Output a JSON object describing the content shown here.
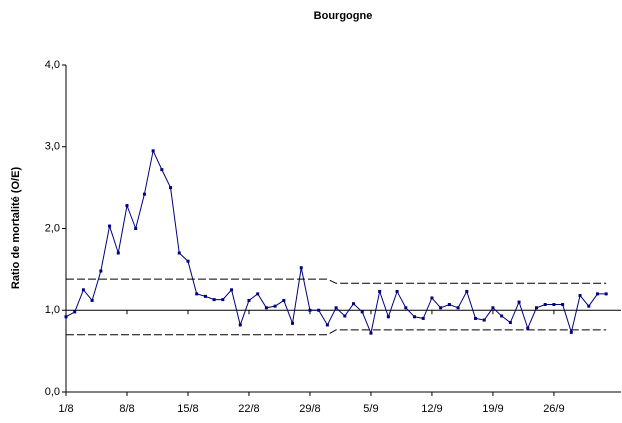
{
  "chart_data": {
    "type": "line",
    "title": "Bourgogne",
    "y_label": "Ratio de mortalité (O/E)",
    "categories": [
      "1/8",
      null,
      null,
      null,
      null,
      null,
      null,
      "8/8",
      null,
      null,
      null,
      null,
      null,
      null,
      "15/8",
      null,
      null,
      null,
      null,
      null,
      null,
      "22/8",
      null,
      null,
      null,
      null,
      null,
      null,
      "29/8",
      null,
      null,
      null,
      null,
      null,
      null,
      "5/9",
      null,
      null,
      null,
      null,
      null,
      null,
      "12/9",
      null,
      null,
      null,
      null,
      null,
      null,
      "19/9",
      null,
      null,
      null,
      null,
      null,
      null,
      "26/9",
      null,
      null,
      null,
      null,
      null,
      null
    ],
    "series": [
      {
        "color": "#000080",
        "style": "solid",
        "markers": true,
        "values": [
          0.92,
          0.98,
          1.25,
          1.12,
          1.48,
          2.03,
          1.7,
          2.28,
          2.0,
          2.42,
          2.95,
          2.72,
          2.5,
          1.7,
          1.6,
          1.2,
          1.17,
          1.13,
          1.13,
          1.25,
          0.82,
          1.12,
          1.2,
          1.03,
          1.05,
          1.12,
          0.84,
          1.52,
          1.0,
          1.0,
          0.82,
          1.03,
          0.93,
          1.08,
          0.98,
          0.72,
          1.23,
          0.92,
          1.23,
          1.03,
          0.92,
          0.9,
          1.15,
          1.03,
          1.07,
          1.03,
          1.23,
          0.9,
          0.88,
          1.03,
          0.93,
          0.85,
          1.1,
          0.78,
          1.03,
          1.07,
          1.07,
          1.07,
          0.73,
          1.18,
          1.05,
          1.2,
          1.2
        ]
      },
      {
        "color": "#000000",
        "style": "dashed",
        "markers": false,
        "values": [
          1.38,
          1.38,
          1.38,
          1.38,
          1.38,
          1.38,
          1.38,
          1.38,
          1.38,
          1.38,
          1.38,
          1.38,
          1.38,
          1.38,
          1.38,
          1.38,
          1.38,
          1.38,
          1.38,
          1.38,
          1.38,
          1.38,
          1.38,
          1.38,
          1.38,
          1.38,
          1.38,
          1.38,
          1.38,
          1.38,
          1.38,
          1.33,
          1.33,
          1.33,
          1.33,
          1.33,
          1.33,
          1.33,
          1.33,
          1.33,
          1.33,
          1.33,
          1.33,
          1.33,
          1.33,
          1.33,
          1.33,
          1.33,
          1.33,
          1.33,
          1.33,
          1.33,
          1.33,
          1.33,
          1.33,
          1.33,
          1.33,
          1.33,
          1.33,
          1.33,
          1.33,
          1.33,
          1.33
        ]
      },
      {
        "color": "#000000",
        "style": "dashed",
        "markers": false,
        "values": [
          0.7,
          0.7,
          0.7,
          0.7,
          0.7,
          0.7,
          0.7,
          0.7,
          0.7,
          0.7,
          0.7,
          0.7,
          0.7,
          0.7,
          0.7,
          0.7,
          0.7,
          0.7,
          0.7,
          0.7,
          0.7,
          0.7,
          0.7,
          0.7,
          0.7,
          0.7,
          0.7,
          0.7,
          0.7,
          0.7,
          0.7,
          0.76,
          0.76,
          0.76,
          0.76,
          0.76,
          0.76,
          0.76,
          0.76,
          0.76,
          0.76,
          0.76,
          0.76,
          0.76,
          0.76,
          0.76,
          0.76,
          0.76,
          0.76,
          0.76,
          0.76,
          0.76,
          0.76,
          0.76,
          0.76,
          0.76,
          0.76,
          0.76,
          0.76,
          0.76,
          0.76,
          0.76,
          0.76
        ]
      }
    ],
    "reference_line": 1,
    "ylim": [
      0,
      4
    ],
    "yticks": [
      {
        "value": 0,
        "label": "0,0"
      },
      {
        "value": 1,
        "label": "1,0"
      },
      {
        "value": 2,
        "label": "2,0"
      },
      {
        "value": 3,
        "label": "3,0"
      },
      {
        "value": 4,
        "label": "4,0"
      }
    ]
  }
}
